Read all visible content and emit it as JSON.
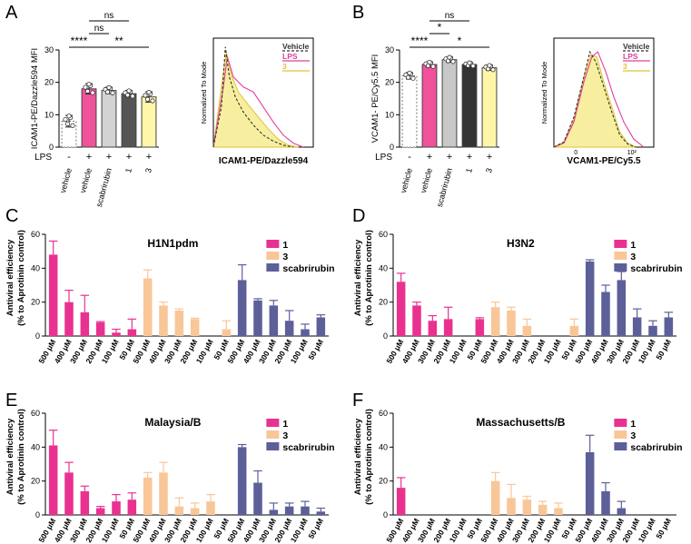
{
  "colors": {
    "vehicle": "#ffffff",
    "lps": "#f0529c",
    "scabrirubin": "#d3d3d3",
    "cmp1": "#555555",
    "cmp3": "#fff6a8",
    "panelB_scab": "#c8c8c8",
    "panelB_cmp1": "#333333",
    "series1": "#e9328f",
    "series3": "#f9c697",
    "seriesScab": "#5d5f99",
    "error": "#9a9a9a",
    "axis": "#000000"
  },
  "chart_data": [
    {
      "panel": "A",
      "type": "bar",
      "ylabel": "ICAM1-PE/Dazzle594 MFI",
      "ylim": [
        0,
        30
      ],
      "yticks": [
        0,
        10,
        20,
        30
      ],
      "lps_row_label": "LPS",
      "lps_signs": [
        "-",
        "+",
        "+",
        "+",
        "+"
      ],
      "categories": [
        "vehicle",
        "vehicle",
        "scabrirubin",
        "1",
        "3"
      ],
      "values": [
        8.0,
        18.0,
        17.5,
        16.5,
        15.5
      ],
      "errors": [
        1.8,
        1.6,
        1.0,
        1.0,
        1.6
      ],
      "significance": [
        {
          "from": 1,
          "to": 2,
          "label": "ns",
          "level": 2
        },
        {
          "from": 1,
          "to": 3,
          "label": "ns",
          "level": 3
        },
        {
          "from": 0,
          "to": 1,
          "label": "****",
          "level": 1
        },
        {
          "from": 1,
          "to": 4,
          "label": "**",
          "level": 1
        }
      ]
    },
    {
      "panel": "A-hist",
      "type": "line",
      "xlabel": "ICAM1-PE/Dazzle594",
      "ylabel": "Normalized To Mode",
      "legend": [
        "Vehicle",
        "LPS",
        "3"
      ],
      "series": [
        {
          "name": "Vehicle",
          "x": [
            0.0,
            0.08,
            0.12,
            0.16,
            0.22,
            0.3,
            0.4,
            0.5,
            0.6,
            0.7,
            0.8
          ],
          "y": [
            0,
            0.4,
            1.0,
            0.7,
            0.5,
            0.35,
            0.22,
            0.12,
            0.06,
            0.02,
            0
          ]
        },
        {
          "name": "LPS",
          "x": [
            0.0,
            0.1,
            0.14,
            0.2,
            0.3,
            0.4,
            0.5,
            0.6,
            0.7,
            0.8,
            0.9
          ],
          "y": [
            0,
            0.6,
            0.9,
            0.7,
            0.6,
            0.55,
            0.4,
            0.25,
            0.12,
            0.04,
            0
          ]
        },
        {
          "name": "3",
          "x": [
            0.0,
            0.08,
            0.13,
            0.18,
            0.25,
            0.35,
            0.45,
            0.55,
            0.65,
            0.75,
            0.85
          ],
          "y": [
            0,
            0.6,
            0.95,
            0.72,
            0.55,
            0.42,
            0.3,
            0.18,
            0.08,
            0.02,
            0
          ]
        }
      ]
    },
    {
      "panel": "B",
      "type": "bar",
      "ylabel": "VCAM1- PE/Cy5.5 MFI",
      "ylim": [
        0,
        30
      ],
      "yticks": [
        0,
        10,
        20,
        30
      ],
      "lps_row_label": "LPS",
      "lps_signs": [
        "-",
        "+",
        "+",
        "+",
        "+"
      ],
      "categories": [
        "vehicle",
        "vehicle",
        "scabrirubin",
        "1",
        "3"
      ],
      "values": [
        22.0,
        25.5,
        27.0,
        25.5,
        24.5
      ],
      "errors": [
        1.0,
        0.8,
        0.8,
        0.6,
        0.8
      ],
      "significance": [
        {
          "from": 1,
          "to": 2,
          "label": "*",
          "level": 2
        },
        {
          "from": 1,
          "to": 3,
          "label": "ns",
          "level": 3
        },
        {
          "from": 0,
          "to": 1,
          "label": "****",
          "level": 1
        },
        {
          "from": 1,
          "to": 4,
          "label": "*",
          "level": 1
        }
      ]
    },
    {
      "panel": "B-hist",
      "type": "line",
      "xlabel": "VCAM1-PE/Cy5.5",
      "ylabel": "Normalized To Mode",
      "xticks": [
        "0",
        "10²"
      ],
      "legend": [
        "Vehicle",
        "LPS",
        "3"
      ],
      "series": [
        {
          "name": "Vehicle",
          "x": [
            0.0,
            0.1,
            0.2,
            0.3,
            0.36,
            0.42,
            0.5,
            0.58,
            0.66,
            0.74,
            0.82
          ],
          "y": [
            0,
            0.05,
            0.3,
            0.7,
            0.95,
            0.85,
            0.6,
            0.35,
            0.12,
            0.03,
            0
          ]
        },
        {
          "name": "LPS",
          "x": [
            0.0,
            0.1,
            0.2,
            0.3,
            0.38,
            0.44,
            0.52,
            0.6,
            0.7,
            0.8,
            0.9
          ],
          "y": [
            0,
            0.04,
            0.25,
            0.65,
            0.9,
            0.95,
            0.75,
            0.5,
            0.25,
            0.08,
            0
          ]
        },
        {
          "name": "3",
          "x": [
            0.0,
            0.1,
            0.2,
            0.3,
            0.37,
            0.43,
            0.5,
            0.58,
            0.66,
            0.74,
            0.82
          ],
          "y": [
            0,
            0.05,
            0.28,
            0.7,
            0.92,
            0.9,
            0.65,
            0.4,
            0.15,
            0.04,
            0
          ]
        }
      ]
    },
    {
      "panel": "C",
      "type": "bar",
      "title": "H1N1pdm",
      "ylabel": [
        "Antiviral efficiency",
        "(% to Aprotinin control)"
      ],
      "ylim": [
        0,
        60
      ],
      "yticks": [
        0,
        20,
        40,
        60
      ],
      "categories": [
        "500 μM",
        "400 μM",
        "300 μM",
        "200 μM",
        "100 μM",
        "50 μM"
      ],
      "legend": [
        "1",
        "3",
        "scabrirubin"
      ],
      "series": [
        {
          "name": "1",
          "values": [
            48,
            20,
            14,
            8,
            2,
            4
          ],
          "errors": [
            8,
            7,
            10,
            0.5,
            2,
            6
          ]
        },
        {
          "name": "3",
          "values": [
            34,
            18,
            15,
            10,
            0,
            4
          ],
          "errors": [
            5,
            2,
            1,
            0.5,
            0,
            5
          ]
        },
        {
          "name": "scabrirubin",
          "values": [
            33,
            21,
            18,
            9,
            4,
            11
          ],
          "errors": [
            9,
            1,
            3,
            6,
            3,
            1.5
          ]
        }
      ]
    },
    {
      "panel": "D",
      "type": "bar",
      "title": "H3N2",
      "ylabel": [
        "Antiviral efficiency",
        "(% to Aprotinin control)"
      ],
      "ylim": [
        0,
        60
      ],
      "yticks": [
        0,
        20,
        40,
        60
      ],
      "categories": [
        "500 μM",
        "400 μM",
        "300 μM",
        "200 μM",
        "100 μM",
        "50 μM"
      ],
      "legend": [
        "1",
        "3",
        "scabrirubin"
      ],
      "series": [
        {
          "name": "1",
          "values": [
            32,
            18,
            9,
            10,
            0,
            10
          ],
          "errors": [
            5,
            2,
            3,
            7,
            1,
            0.8
          ]
        },
        {
          "name": "3",
          "values": [
            17,
            15,
            6,
            0,
            0,
            6
          ],
          "errors": [
            3,
            2,
            4,
            0,
            0,
            4
          ]
        },
        {
          "name": "scabrirubin",
          "values": [
            44,
            26,
            33,
            11,
            6,
            11
          ],
          "errors": [
            1,
            4,
            5,
            5,
            3,
            3
          ]
        }
      ]
    },
    {
      "panel": "E",
      "type": "bar",
      "title": "Malaysia/B",
      "ylabel": [
        "Antiviral efficiency",
        "(% to Aprotinin control)"
      ],
      "ylim": [
        0,
        60
      ],
      "yticks": [
        0,
        20,
        40,
        60
      ],
      "categories": [
        "500 μM",
        "400 μM",
        "300 μM",
        "200 μM",
        "100 μM",
        "50 μM"
      ],
      "legend": [
        "1",
        "3",
        "scabrirubin"
      ],
      "series": [
        {
          "name": "1",
          "values": [
            41,
            25,
            14,
            4,
            8,
            9
          ],
          "errors": [
            9,
            6,
            3,
            1,
            4,
            4
          ]
        },
        {
          "name": "3",
          "values": [
            22,
            25,
            5,
            4,
            8,
            0
          ],
          "errors": [
            3,
            6,
            5,
            3,
            4,
            0
          ]
        },
        {
          "name": "scabrirubin",
          "values": [
            40,
            19,
            3,
            5,
            5,
            2
          ],
          "errors": [
            1.5,
            7,
            4,
            2,
            3,
            2
          ]
        }
      ]
    },
    {
      "panel": "F",
      "type": "bar",
      "title": "Massachusetts/B",
      "ylabel": [
        "Antiviral efficiency",
        "(% to Aprotinin control)"
      ],
      "ylim": [
        0,
        60
      ],
      "yticks": [
        0,
        20,
        40,
        60
      ],
      "categories": [
        "500 μM",
        "400 μM",
        "300 μM",
        "200 μM",
        "100 μM",
        "50 μM"
      ],
      "legend": [
        "1",
        "3",
        "scabrirubin"
      ],
      "series": [
        {
          "name": "1",
          "values": [
            16,
            0,
            0,
            0,
            0,
            0
          ],
          "errors": [
            6,
            0,
            0,
            0,
            0,
            0
          ]
        },
        {
          "name": "3",
          "values": [
            20,
            10,
            9,
            6,
            4,
            0
          ],
          "errors": [
            5,
            8,
            2,
            2,
            3,
            0
          ]
        },
        {
          "name": "scabrirubin",
          "values": [
            37,
            14,
            4,
            0,
            0,
            0
          ],
          "errors": [
            10,
            5,
            4,
            0,
            0,
            0
          ]
        }
      ]
    }
  ]
}
